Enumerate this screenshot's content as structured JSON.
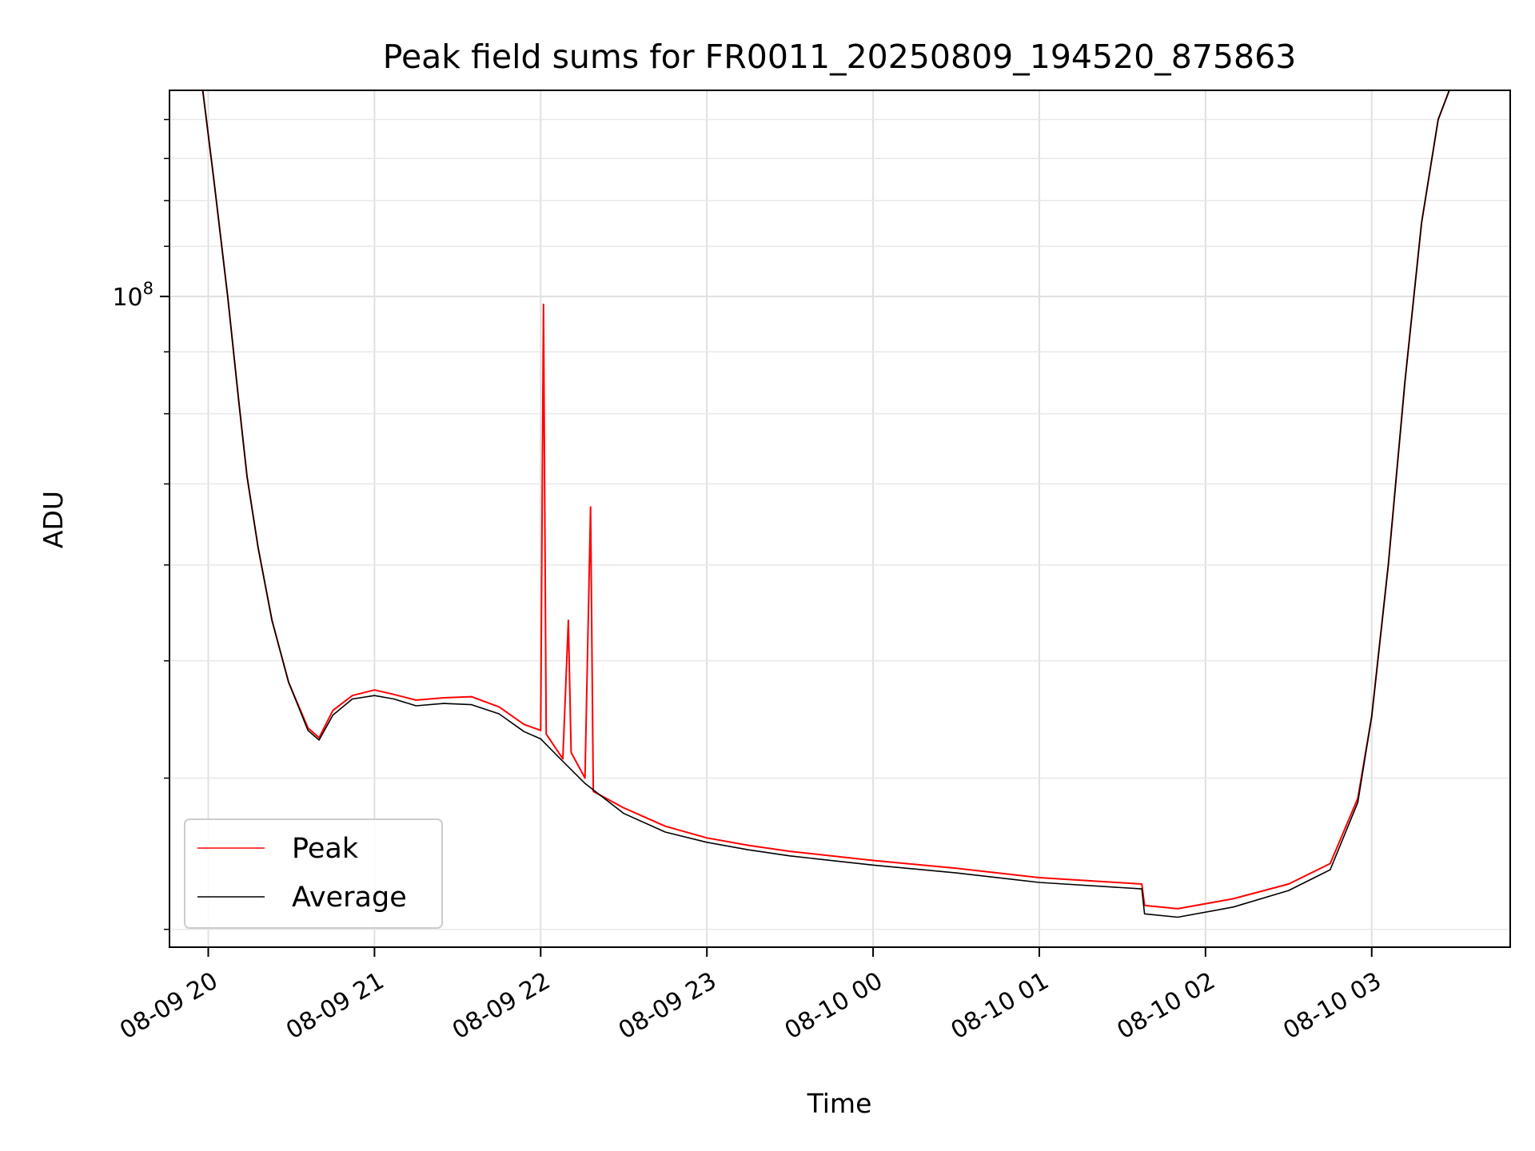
{
  "chart_data": {
    "type": "line",
    "title": "Peak field sums for FR0011_20250809_194520_875863",
    "xlabel": "Time",
    "ylabel": "ADU",
    "yscale": "log",
    "xlim": [
      "2025-08-09 19:46",
      "2025-08-10 03:50"
    ],
    "ylim": [
      29000000,
      148000000
    ],
    "grid": true,
    "legend_position": "lower-left",
    "x_ticks": [
      "08-09 20",
      "08-09 21",
      "08-09 22",
      "08-09 23",
      "08-10 00",
      "08-10 01",
      "08-10 02",
      "08-10 03"
    ],
    "y_ticks": [
      {
        "value": 100000000,
        "label": "10^8"
      }
    ],
    "series": [
      {
        "name": "Peak",
        "color": "#ff0000",
        "points": [
          [
            "2025-08-09 19:58",
            148000000
          ],
          [
            "2025-08-09 20:02",
            125000000
          ],
          [
            "2025-08-09 20:07",
            100000000
          ],
          [
            "2025-08-09 20:11",
            82000000
          ],
          [
            "2025-08-09 20:14",
            71000000
          ],
          [
            "2025-08-09 20:18",
            62000000
          ],
          [
            "2025-08-09 20:23",
            54000000
          ],
          [
            "2025-08-09 20:29",
            48000000
          ],
          [
            "2025-08-09 20:36",
            44000000
          ],
          [
            "2025-08-09 20:40",
            43200000
          ],
          [
            "2025-08-09 20:45",
            45500000
          ],
          [
            "2025-08-09 20:52",
            46800000
          ],
          [
            "2025-08-09 21:00",
            47300000
          ],
          [
            "2025-08-09 21:07",
            46900000
          ],
          [
            "2025-08-09 21:15",
            46400000
          ],
          [
            "2025-08-09 21:25",
            46600000
          ],
          [
            "2025-08-09 21:35",
            46700000
          ],
          [
            "2025-08-09 21:45",
            45800000
          ],
          [
            "2025-08-09 21:54",
            44300000
          ],
          [
            "2025-08-09 22:00",
            43800000
          ],
          [
            "2025-08-09 22:01",
            98500000
          ],
          [
            "2025-08-09 22:02",
            43500000
          ],
          [
            "2025-08-09 22:08",
            41500000
          ],
          [
            "2025-08-09 22:10",
            54000000
          ],
          [
            "2025-08-09 22:11",
            42000000
          ],
          [
            "2025-08-09 22:16",
            40000000
          ],
          [
            "2025-08-09 22:18",
            67000000
          ],
          [
            "2025-08-09 22:19",
            39000000
          ],
          [
            "2025-08-09 22:30",
            37800000
          ],
          [
            "2025-08-09 22:45",
            36500000
          ],
          [
            "2025-08-09 23:00",
            35700000
          ],
          [
            "2025-08-09 23:15",
            35200000
          ],
          [
            "2025-08-09 23:30",
            34800000
          ],
          [
            "2025-08-10 00:00",
            34200000
          ],
          [
            "2025-08-10 00:30",
            33700000
          ],
          [
            "2025-08-10 01:00",
            33100000
          ],
          [
            "2025-08-10 01:37",
            32700000
          ],
          [
            "2025-08-10 01:38",
            31400000
          ],
          [
            "2025-08-10 01:50",
            31200000
          ],
          [
            "2025-08-10 02:10",
            31800000
          ],
          [
            "2025-08-10 02:30",
            32700000
          ],
          [
            "2025-08-10 02:45",
            34000000
          ],
          [
            "2025-08-10 02:55",
            38500000
          ],
          [
            "2025-08-10 03:00",
            45000000
          ],
          [
            "2025-08-10 03:06",
            60000000
          ],
          [
            "2025-08-10 03:12",
            85000000
          ],
          [
            "2025-08-10 03:18",
            115000000
          ],
          [
            "2025-08-10 03:24",
            140000000
          ],
          [
            "2025-08-10 03:28",
            148000000
          ],
          [
            "2025-08-10 03:34",
            148000000
          ]
        ]
      },
      {
        "name": "Average",
        "color": "#000000",
        "points": [
          [
            "2025-08-09 19:58",
            148000000
          ],
          [
            "2025-08-09 20:02",
            125000000
          ],
          [
            "2025-08-09 20:07",
            100000000
          ],
          [
            "2025-08-09 20:11",
            82000000
          ],
          [
            "2025-08-09 20:14",
            71000000
          ],
          [
            "2025-08-09 20:18",
            62000000
          ],
          [
            "2025-08-09 20:23",
            54000000
          ],
          [
            "2025-08-09 20:29",
            48000000
          ],
          [
            "2025-08-09 20:36",
            43800000
          ],
          [
            "2025-08-09 20:40",
            43000000
          ],
          [
            "2025-08-09 20:45",
            45100000
          ],
          [
            "2025-08-09 20:52",
            46500000
          ],
          [
            "2025-08-09 21:00",
            46800000
          ],
          [
            "2025-08-09 21:07",
            46500000
          ],
          [
            "2025-08-09 21:15",
            45900000
          ],
          [
            "2025-08-09 21:25",
            46100000
          ],
          [
            "2025-08-09 21:35",
            46000000
          ],
          [
            "2025-08-09 21:45",
            45200000
          ],
          [
            "2025-08-09 21:54",
            43700000
          ],
          [
            "2025-08-09 22:00",
            43100000
          ],
          [
            "2025-08-09 22:08",
            41300000
          ],
          [
            "2025-08-09 22:16",
            39600000
          ],
          [
            "2025-08-09 22:30",
            37400000
          ],
          [
            "2025-08-09 22:45",
            36100000
          ],
          [
            "2025-08-09 23:00",
            35400000
          ],
          [
            "2025-08-09 23:15",
            34900000
          ],
          [
            "2025-08-09 23:30",
            34500000
          ],
          [
            "2025-08-10 00:00",
            33900000
          ],
          [
            "2025-08-10 00:30",
            33400000
          ],
          [
            "2025-08-10 01:00",
            32800000
          ],
          [
            "2025-08-10 01:37",
            32400000
          ],
          [
            "2025-08-10 01:38",
            30900000
          ],
          [
            "2025-08-10 01:50",
            30700000
          ],
          [
            "2025-08-10 02:10",
            31300000
          ],
          [
            "2025-08-10 02:30",
            32300000
          ],
          [
            "2025-08-10 02:45",
            33600000
          ],
          [
            "2025-08-10 02:55",
            38200000
          ],
          [
            "2025-08-10 03:00",
            45000000
          ],
          [
            "2025-08-10 03:06",
            60000000
          ],
          [
            "2025-08-10 03:12",
            85000000
          ],
          [
            "2025-08-10 03:18",
            115000000
          ],
          [
            "2025-08-10 03:24",
            140000000
          ],
          [
            "2025-08-10 03:28",
            148000000
          ],
          [
            "2025-08-10 03:34",
            148000000
          ]
        ]
      }
    ]
  }
}
